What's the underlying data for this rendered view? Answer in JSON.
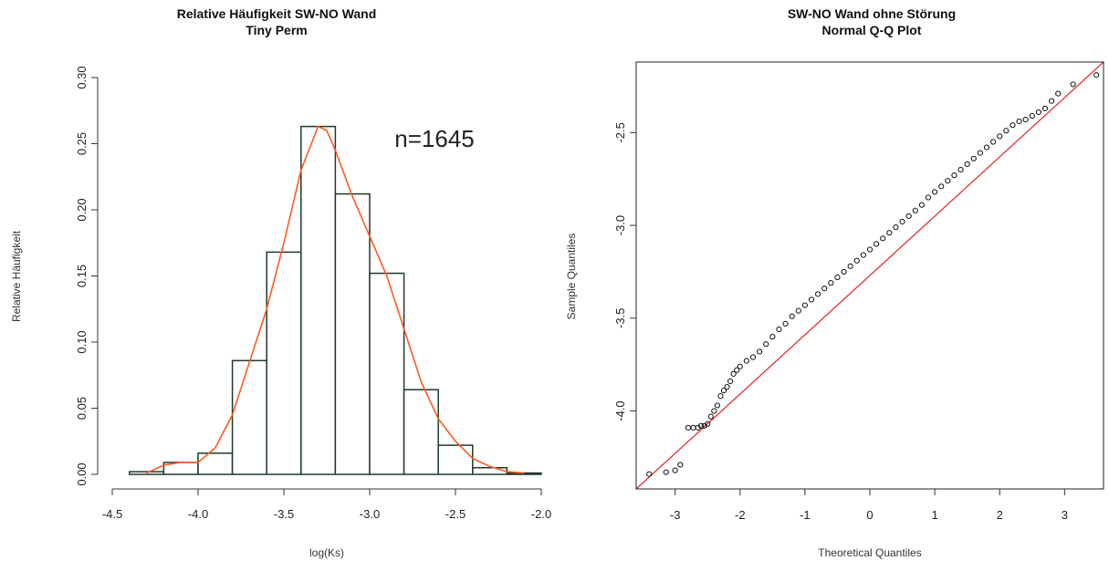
{
  "chart_data": [
    {
      "type": "histogram",
      "title": "Relative Häufigkeit SW-NO Wand",
      "subtitle": "Tiny Perm",
      "xlabel": "log(Ks)",
      "ylabel": "Relative Häufigkeit",
      "xlim": [
        -4.5,
        -2.0
      ],
      "ylim": [
        0,
        0.3
      ],
      "xticks": [
        "-4.5",
        "-4.0",
        "-3.5",
        "-3.0",
        "-2.5",
        "-2.0"
      ],
      "yticks": [
        "0.00",
        "0.05",
        "0.10",
        "0.15",
        "0.20",
        "0.25",
        "0.30"
      ],
      "annotation": "n=1645",
      "bins": [
        {
          "x0": -4.4,
          "x1": -4.2,
          "value": 0.002
        },
        {
          "x0": -4.2,
          "x1": -4.0,
          "value": 0.009
        },
        {
          "x0": -4.0,
          "x1": -3.8,
          "value": 0.016
        },
        {
          "x0": -3.8,
          "x1": -3.6,
          "value": 0.086
        },
        {
          "x0": -3.6,
          "x1": -3.4,
          "value": 0.168
        },
        {
          "x0": -3.4,
          "x1": -3.2,
          "value": 0.263
        },
        {
          "x0": -3.2,
          "x1": -3.0,
          "value": 0.212
        },
        {
          "x0": -3.0,
          "x1": -2.8,
          "value": 0.152
        },
        {
          "x0": -2.8,
          "x1": -2.6,
          "value": 0.064
        },
        {
          "x0": -2.6,
          "x1": -2.4,
          "value": 0.022
        },
        {
          "x0": -2.4,
          "x1": -2.2,
          "value": 0.005
        },
        {
          "x0": -2.2,
          "x1": -2.0,
          "value": 0.001
        }
      ],
      "density_curve": {
        "color": "#ff5a1f",
        "x": [
          -4.3,
          -4.2,
          -4.1,
          -4.0,
          -3.9,
          -3.8,
          -3.7,
          -3.6,
          -3.5,
          -3.4,
          -3.3,
          -3.25,
          -3.2,
          -3.1,
          -3.0,
          -2.9,
          -2.8,
          -2.7,
          -2.6,
          -2.5,
          -2.4,
          -2.3,
          -2.2,
          -2.1
        ],
        "y": [
          0.001,
          0.007,
          0.009,
          0.009,
          0.02,
          0.045,
          0.085,
          0.125,
          0.175,
          0.23,
          0.263,
          0.26,
          0.245,
          0.21,
          0.18,
          0.15,
          0.11,
          0.07,
          0.042,
          0.025,
          0.012,
          0.006,
          0.002,
          0.001
        ]
      },
      "bar_fill": "#ffffff",
      "bar_stroke": "#1e3a2a"
    },
    {
      "type": "scatter",
      "title": "SW-NO Wand ohne Störung",
      "subtitle": "Normal Q-Q Plot",
      "xlabel": "Theoretical Quantiles",
      "ylabel": "Sample Quantiles",
      "xlim": [
        -3.6,
        3.6
      ],
      "ylim": [
        -4.42,
        -2.12
      ],
      "xticks": [
        "-3",
        "-2",
        "-1",
        "0",
        "1",
        "2",
        "3"
      ],
      "yticks": [
        "-4.0",
        "-3.5",
        "-3.0",
        "-2.5"
      ],
      "reference_line": {
        "color": "#e03030",
        "x": [
          -3.6,
          3.6
        ],
        "y": [
          -4.42,
          -2.12
        ]
      },
      "points": {
        "x": [
          -3.4,
          -3.14,
          -3.0,
          -2.92,
          -2.8,
          -2.72,
          -2.65,
          -2.6,
          -2.55,
          -2.5,
          -2.45,
          -2.4,
          -2.35,
          -2.3,
          -2.25,
          -2.2,
          -2.15,
          -2.1,
          -2.05,
          -2.0,
          -1.9,
          -1.8,
          -1.7,
          -1.6,
          -1.5,
          -1.4,
          -1.3,
          -1.2,
          -1.1,
          -1.0,
          -0.9,
          -0.8,
          -0.7,
          -0.6,
          -0.5,
          -0.4,
          -0.3,
          -0.2,
          -0.1,
          0.0,
          0.1,
          0.2,
          0.3,
          0.4,
          0.5,
          0.6,
          0.7,
          0.8,
          0.9,
          1.0,
          1.1,
          1.2,
          1.3,
          1.4,
          1.5,
          1.6,
          1.7,
          1.8,
          1.9,
          2.0,
          2.1,
          2.2,
          2.3,
          2.4,
          2.5,
          2.6,
          2.7,
          2.8,
          2.9,
          3.13,
          3.49
        ],
        "y": [
          -4.34,
          -4.33,
          -4.32,
          -4.29,
          -4.09,
          -4.09,
          -4.09,
          -4.08,
          -4.08,
          -4.07,
          -4.03,
          -4.0,
          -3.97,
          -3.92,
          -3.89,
          -3.87,
          -3.84,
          -3.8,
          -3.78,
          -3.76,
          -3.73,
          -3.71,
          -3.68,
          -3.64,
          -3.6,
          -3.56,
          -3.53,
          -3.49,
          -3.46,
          -3.43,
          -3.4,
          -3.37,
          -3.34,
          -3.31,
          -3.28,
          -3.25,
          -3.22,
          -3.19,
          -3.16,
          -3.13,
          -3.1,
          -3.07,
          -3.04,
          -3.01,
          -2.98,
          -2.95,
          -2.92,
          -2.89,
          -2.85,
          -2.82,
          -2.79,
          -2.76,
          -2.73,
          -2.7,
          -2.67,
          -2.64,
          -2.61,
          -2.58,
          -2.55,
          -2.52,
          -2.49,
          -2.46,
          -2.44,
          -2.43,
          -2.41,
          -2.39,
          -2.37,
          -2.33,
          -2.29,
          -2.24,
          -2.19
        ]
      }
    }
  ]
}
